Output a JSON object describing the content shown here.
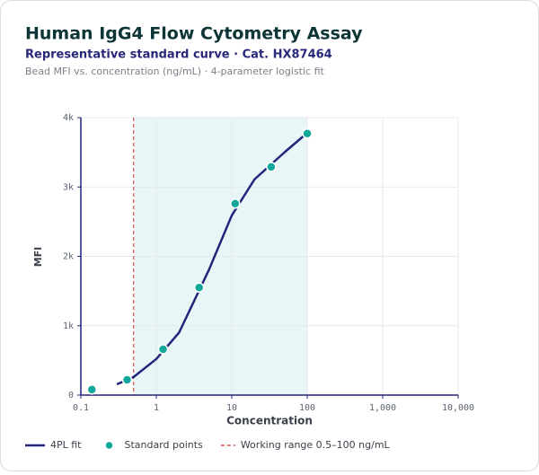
{
  "chart_data": {
    "type": "scatter",
    "title": "Human IgG4 Flow Cytometry Assay",
    "subtitle": "Representative standard curve · Cat. HX87464",
    "description": "Bead MFI vs. concentration (ng/mL) · 4-parameter logistic fit",
    "x_label": "Concentration",
    "y_label": "MFI",
    "xscale": "log",
    "xlim": [
      0.1,
      10000
    ],
    "xticks": [
      0.1,
      1,
      10,
      100,
      {
        "value": 1000,
        "label": "1,000"
      },
      {
        "value": 10000,
        "label": "10,000"
      }
    ],
    "ylim": [
      0,
      4000
    ],
    "yticks": [
      {
        "value": 0,
        "label": "0"
      },
      {
        "value": 1000,
        "label": "1k"
      },
      {
        "value": 2000,
        "label": "2k"
      },
      {
        "value": 3000,
        "label": "3k"
      },
      {
        "value": 4000,
        "label": "4k"
      }
    ],
    "grid": true,
    "legend": "bottom",
    "series": [
      {
        "name": "4PL fit",
        "color": "#23257a",
        "style": "line",
        "x": [
          0.3,
          0.5,
          1,
          2,
          5,
          10,
          20,
          50,
          100
        ],
        "values": [
          155,
          260,
          520,
          900,
          1810,
          2590,
          3110,
          3500,
          3780
        ]
      },
      {
        "name": "Standard points",
        "color": "#13a69b",
        "style": "points",
        "x": [
          0.14,
          0.41,
          1.23,
          3.7,
          11.1,
          33.3,
          100
        ],
        "values": [
          80,
          220,
          660,
          1550,
          2760,
          3290,
          3770
        ]
      }
    ],
    "band": {
      "name": "Working range 0.5–100 ng/mL",
      "range": [
        0.5,
        100
      ],
      "color": "#d9534f",
      "fill": "#e9f6f7"
    }
  }
}
